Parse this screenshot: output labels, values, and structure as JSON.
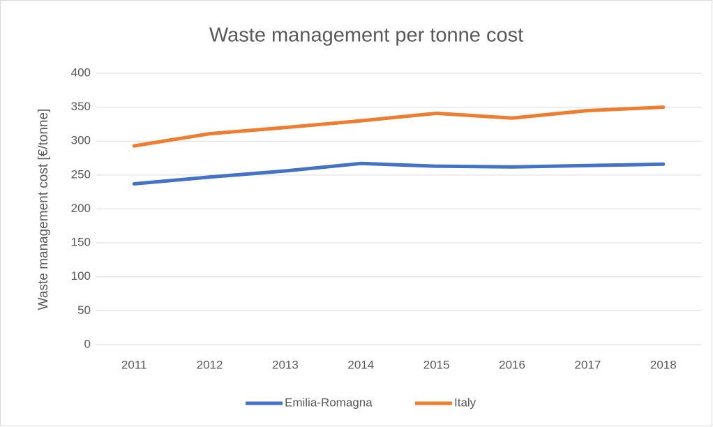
{
  "chart_data": {
    "type": "line",
    "title": "Waste management per tonne cost",
    "y_label": "Waste management cost [€/tonne]",
    "categories": [
      "2011",
      "2012",
      "2013",
      "2014",
      "2015",
      "2016",
      "2017",
      "2018"
    ],
    "series": [
      {
        "name": "Emilia-Romagna",
        "color": "#4472c4",
        "values": [
          237,
          247,
          256,
          267,
          263,
          262,
          264,
          266
        ]
      },
      {
        "name": "Italy",
        "color": "#ed7d31",
        "values": [
          293,
          311,
          320,
          330,
          341,
          334,
          345,
          350
        ]
      }
    ],
    "ylim": [
      0,
      400
    ],
    "yticks": [
      0,
      50,
      100,
      150,
      200,
      250,
      300,
      350,
      400
    ],
    "grid": true,
    "legend": "bottom"
  }
}
